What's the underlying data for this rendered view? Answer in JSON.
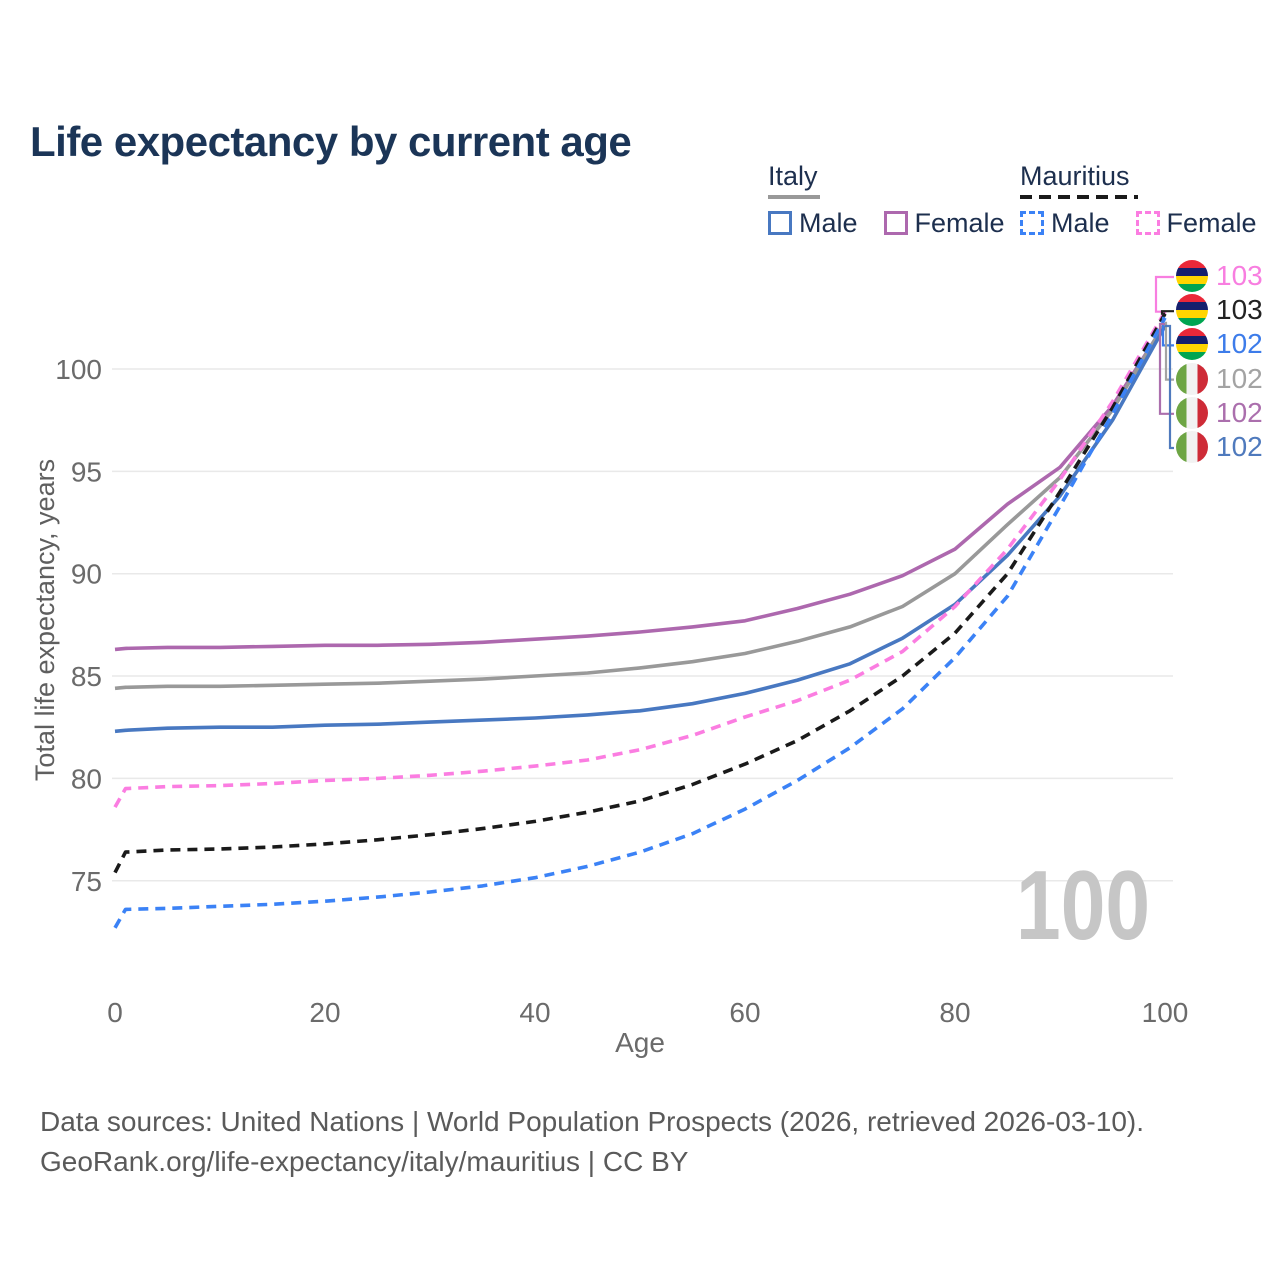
{
  "page": {
    "title": "Life expectancy by current age",
    "watermark_age": "100",
    "source_line1": "Data sources: United Nations | World Population Prospects (2026, retrieved 2026-03-10).",
    "source_line2": "GeoRank.org/life-expectancy/italy/mauritius | CC BY"
  },
  "colors": {
    "title": "#1b3557",
    "axis_text": "#6b6b6b",
    "grid": "#e9e9e9",
    "watermark": "#c6c6c6",
    "source_text": "#5a5a5a"
  },
  "legend": {
    "groups": [
      {
        "label": "Italy",
        "line_style": "solid",
        "underline_color": "#999999",
        "entries": [
          {
            "label": "Male",
            "color": "#4878c1"
          },
          {
            "label": "Female",
            "color": "#ad68ae"
          }
        ]
      },
      {
        "label": "Mauritius",
        "line_style": "dashed",
        "underline_color": "#1a1a1a",
        "entries": [
          {
            "label": "Male",
            "color": "#3b82f6"
          },
          {
            "label": "Female",
            "color": "#fb7de1"
          }
        ]
      }
    ]
  },
  "chart_data": {
    "type": "line",
    "title": "Life expectancy by current age",
    "xlabel": "Age",
    "ylabel": "Total life expectancy, years",
    "xlim": [
      0,
      100
    ],
    "ylim": [
      72,
      104
    ],
    "xticks": [
      0,
      20,
      40,
      60,
      80,
      100
    ],
    "yticks": [
      75,
      80,
      85,
      90,
      95,
      100
    ],
    "grid": true,
    "legend_position": "top-right",
    "x": [
      0,
      1,
      5,
      10,
      15,
      20,
      25,
      30,
      35,
      40,
      45,
      50,
      55,
      60,
      65,
      70,
      75,
      80,
      85,
      90,
      95,
      100
    ],
    "series": [
      {
        "name": "Italy Female",
        "country": "Italy",
        "sex": "Female",
        "style": "solid",
        "color": "#ad68ae",
        "values": [
          86.3,
          86.35,
          86.4,
          86.4,
          86.45,
          86.5,
          86.5,
          86.55,
          86.65,
          86.8,
          86.95,
          87.15,
          87.4,
          87.7,
          88.3,
          89.0,
          89.9,
          91.2,
          93.4,
          95.2,
          98.2,
          102.2
        ]
      },
      {
        "name": "Italy",
        "country": "Italy",
        "sex": "Both",
        "style": "solid",
        "color": "#999999",
        "values": [
          84.4,
          84.45,
          84.5,
          84.5,
          84.55,
          84.6,
          84.65,
          84.75,
          84.85,
          85.0,
          85.15,
          85.4,
          85.7,
          86.1,
          86.7,
          87.4,
          88.4,
          90.0,
          92.4,
          94.7,
          98.0,
          102.25
        ]
      },
      {
        "name": "Italy Male",
        "country": "Italy",
        "sex": "Male",
        "style": "solid",
        "color": "#4878c1",
        "values": [
          82.3,
          82.35,
          82.45,
          82.5,
          82.5,
          82.6,
          82.65,
          82.75,
          82.85,
          82.95,
          83.1,
          83.3,
          83.65,
          84.15,
          84.8,
          85.6,
          86.85,
          88.5,
          90.9,
          93.8,
          97.5,
          102.1
        ]
      },
      {
        "name": "Mauritius Female",
        "country": "Mauritius",
        "sex": "Female",
        "style": "dashed",
        "color": "#fb7de1",
        "values": [
          78.6,
          79.5,
          79.6,
          79.65,
          79.75,
          79.9,
          80.0,
          80.15,
          80.35,
          80.6,
          80.9,
          81.4,
          82.1,
          83.0,
          83.8,
          84.8,
          86.2,
          88.4,
          91.2,
          94.6,
          98.4,
          102.8
        ]
      },
      {
        "name": "Mauritius",
        "country": "Mauritius",
        "sex": "Both",
        "style": "dashed",
        "color": "#1a1a1a",
        "values": [
          75.4,
          76.4,
          76.5,
          76.55,
          76.65,
          76.8,
          77.0,
          77.25,
          77.55,
          77.9,
          78.35,
          78.9,
          79.7,
          80.7,
          81.85,
          83.3,
          85.0,
          87.1,
          90.0,
          94.0,
          98.1,
          102.7
        ]
      },
      {
        "name": "Mauritius Male",
        "country": "Mauritius",
        "sex": "Male",
        "style": "dashed",
        "color": "#3b82f6",
        "values": [
          72.7,
          73.6,
          73.65,
          73.75,
          73.85,
          74.0,
          74.2,
          74.45,
          74.75,
          75.15,
          75.7,
          76.4,
          77.3,
          78.5,
          79.9,
          81.5,
          83.4,
          85.9,
          88.9,
          93.3,
          97.8,
          102.5
        ]
      }
    ],
    "end_labels": [
      {
        "series": "Mauritius Female",
        "value": "103",
        "flag": "mauritius",
        "color": "#f87ee0"
      },
      {
        "series": "Mauritius",
        "value": "103",
        "flag": "mauritius",
        "color": "#222222"
      },
      {
        "series": "Mauritius Male",
        "value": "102",
        "flag": "mauritius",
        "color": "#3d7cea"
      },
      {
        "series": "Italy",
        "value": "102",
        "flag": "italy",
        "color": "#a3a3a3"
      },
      {
        "series": "Italy Female",
        "value": "102",
        "flag": "italy",
        "color": "#ab6fad"
      },
      {
        "series": "Italy Male",
        "value": "102",
        "flag": "italy",
        "color": "#4f7abd"
      }
    ]
  }
}
